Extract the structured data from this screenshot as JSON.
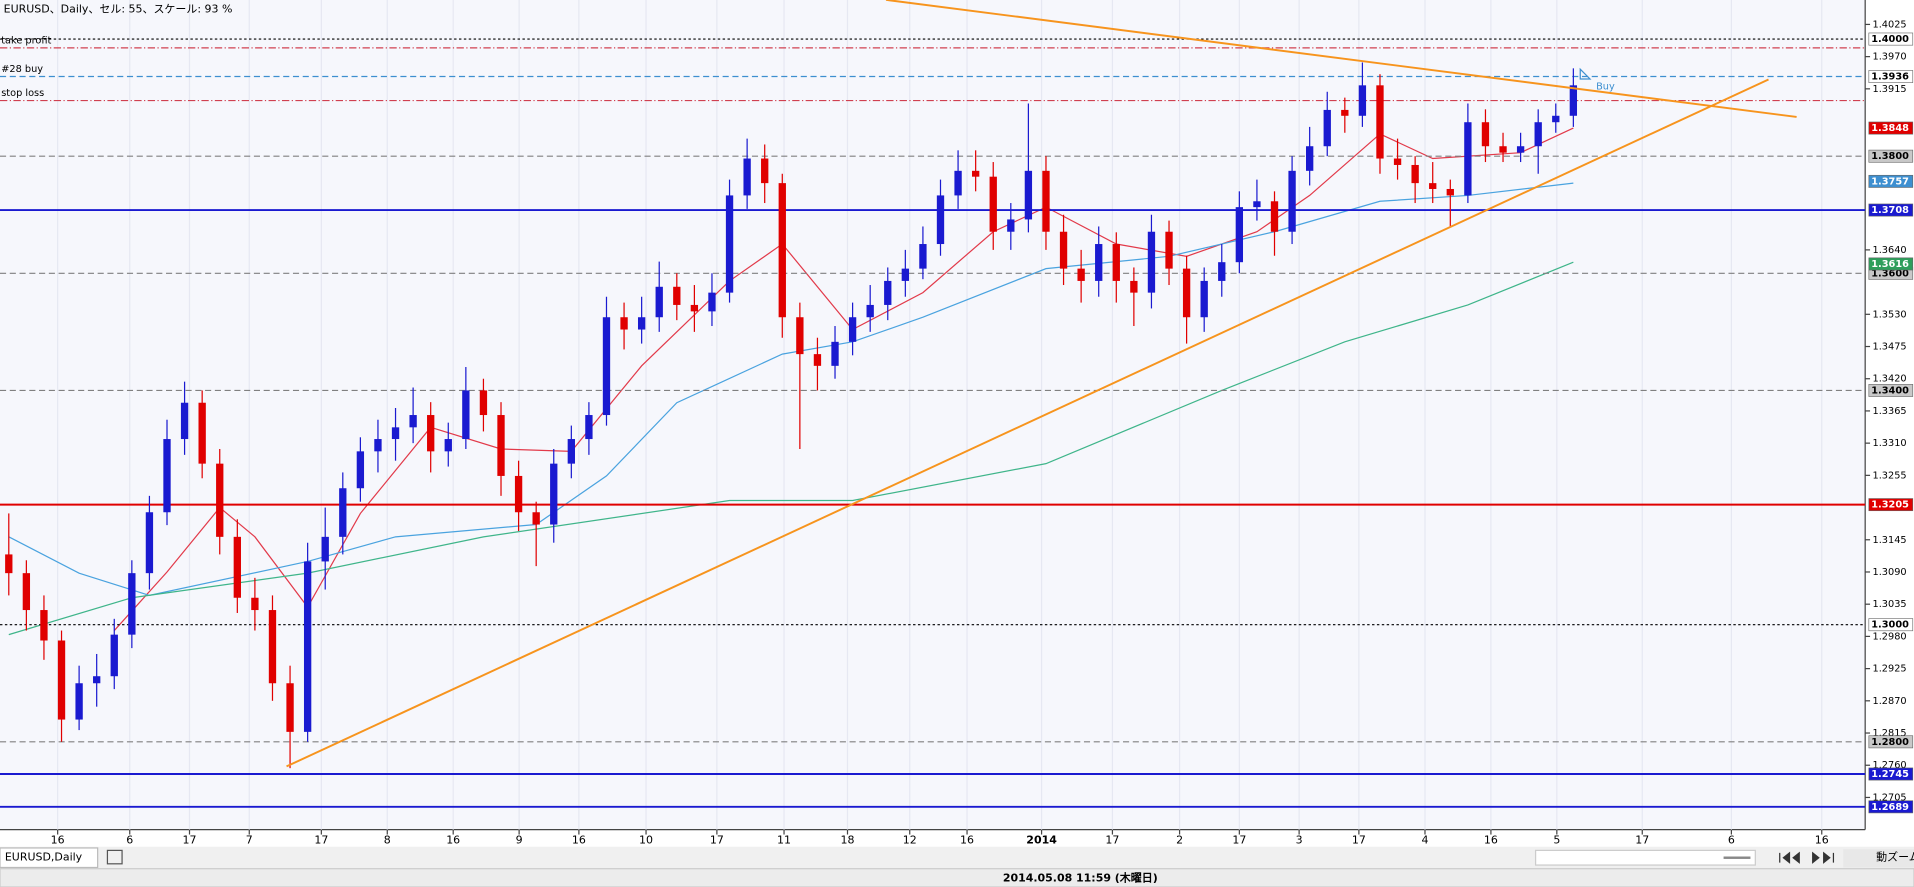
{
  "header": {
    "title": "EURUSD、Daily、セル: 55、スケール: 93 %"
  },
  "chart_data": {
    "type": "candlestick",
    "grid": true,
    "xlim": [
      -0.5,
      105.6
    ],
    "ylim": [
      1.265,
      1.40667
    ],
    "yticks": [
      {
        "value": 1.4025,
        "label": "1.4025"
      },
      {
        "value": 1.397,
        "label": "1.3970"
      },
      {
        "value": 1.3915,
        "label": "1.3915"
      },
      {
        "value": 1.364,
        "label": "1.3640"
      },
      {
        "value": 1.353,
        "label": "1.3530"
      },
      {
        "value": 1.3475,
        "label": "1.3475"
      },
      {
        "value": 1.342,
        "label": "1.3420"
      },
      {
        "value": 1.3365,
        "label": "1.3365"
      },
      {
        "value": 1.331,
        "label": "1.3310"
      },
      {
        "value": 1.3255,
        "label": "1.3255"
      },
      {
        "value": 1.3145,
        "label": "1.3145"
      },
      {
        "value": 1.309,
        "label": "1.3090"
      },
      {
        "value": 1.3035,
        "label": "1.3035"
      },
      {
        "value": 1.298,
        "label": "1.2980"
      },
      {
        "value": 1.2925,
        "label": "1.2925"
      },
      {
        "value": 1.287,
        "label": "1.2870"
      },
      {
        "value": 1.2815,
        "label": "1.2815"
      },
      {
        "value": 1.276,
        "label": "1.2760"
      },
      {
        "value": 1.2705,
        "label": "1.2705"
      }
    ],
    "xticks": [
      {
        "value": 2.78,
        "label": "16"
      },
      {
        "value": 6.88,
        "label": "6"
      },
      {
        "value": 10.28,
        "label": "17"
      },
      {
        "value": 13.68,
        "label": "7"
      },
      {
        "value": 17.78,
        "label": "17"
      },
      {
        "value": 21.53,
        "label": "8"
      },
      {
        "value": 25.28,
        "label": "16"
      },
      {
        "value": 29.03,
        "label": "9"
      },
      {
        "value": 32.43,
        "label": "16"
      },
      {
        "value": 36.25,
        "label": "10"
      },
      {
        "value": 40.28,
        "label": "17"
      },
      {
        "value": 44.1,
        "label": "11"
      },
      {
        "value": 47.71,
        "label": "18"
      },
      {
        "value": 51.25,
        "label": "12"
      },
      {
        "value": 54.51,
        "label": "16"
      },
      {
        "value": 58.75,
        "label": "2014"
      },
      {
        "value": 62.78,
        "label": "17"
      },
      {
        "value": 66.6,
        "label": "2"
      },
      {
        "value": 70,
        "label": "17"
      },
      {
        "value": 73.4,
        "label": "3"
      },
      {
        "value": 76.8,
        "label": "17"
      },
      {
        "value": 80.56,
        "label": "4"
      },
      {
        "value": 84.31,
        "label": "16"
      },
      {
        "value": 88.06,
        "label": "5"
      },
      {
        "value": 92.92,
        "label": "17"
      },
      {
        "value": 97.99,
        "label": "6"
      },
      {
        "value": 103.13,
        "label": "16"
      }
    ],
    "candles": {
      "up_color": "#1a1ad0",
      "down_color": "#e00000",
      "ohlc": [
        [
          1.312,
          1.319,
          1.305,
          1.3088
        ],
        [
          1.3088,
          1.311,
          1.299,
          1.3025
        ],
        [
          1.3025,
          1.305,
          1.294,
          1.2973
        ],
        [
          1.2973,
          1.299,
          1.28,
          1.2838
        ],
        [
          1.2838,
          1.293,
          1.282,
          1.29
        ],
        [
          1.29,
          1.295,
          1.286,
          1.2912
        ],
        [
          1.2912,
          1.301,
          1.289,
          1.2983
        ],
        [
          1.2983,
          1.311,
          1.296,
          1.3088
        ],
        [
          1.3088,
          1.322,
          1.306,
          1.3192
        ],
        [
          1.3192,
          1.335,
          1.317,
          1.3317
        ],
        [
          1.3317,
          1.3415,
          1.329,
          1.3379
        ],
        [
          1.3379,
          1.34,
          1.325,
          1.3275
        ],
        [
          1.3275,
          1.33,
          1.312,
          1.315
        ],
        [
          1.315,
          1.318,
          1.302,
          1.3046
        ],
        [
          1.3046,
          1.308,
          1.299,
          1.3025
        ],
        [
          1.3025,
          1.305,
          1.287,
          1.29
        ],
        [
          1.29,
          1.293,
          1.2755,
          1.2817
        ],
        [
          1.2817,
          1.314,
          1.28,
          1.3108
        ],
        [
          1.3108,
          1.32,
          1.306,
          1.315
        ],
        [
          1.315,
          1.326,
          1.312,
          1.3233
        ],
        [
          1.3233,
          1.332,
          1.321,
          1.3296
        ],
        [
          1.3296,
          1.335,
          1.326,
          1.3317
        ],
        [
          1.3317,
          1.337,
          1.328,
          1.3337
        ],
        [
          1.3337,
          1.3405,
          1.331,
          1.3358
        ],
        [
          1.3358,
          1.338,
          1.326,
          1.3296
        ],
        [
          1.3296,
          1.3345,
          1.327,
          1.3317
        ],
        [
          1.3317,
          1.344,
          1.33,
          1.34
        ],
        [
          1.34,
          1.342,
          1.333,
          1.3358
        ],
        [
          1.3358,
          1.338,
          1.322,
          1.3254
        ],
        [
          1.3254,
          1.328,
          1.316,
          1.3192
        ],
        [
          1.3192,
          1.321,
          1.31,
          1.3171
        ],
        [
          1.3171,
          1.33,
          1.314,
          1.3275
        ],
        [
          1.3275,
          1.334,
          1.325,
          1.3317
        ],
        [
          1.3317,
          1.338,
          1.329,
          1.3358
        ],
        [
          1.3358,
          1.356,
          1.334,
          1.3525
        ],
        [
          1.3525,
          1.355,
          1.347,
          1.3504
        ],
        [
          1.3504,
          1.356,
          1.348,
          1.3525
        ],
        [
          1.3525,
          1.362,
          1.35,
          1.3577
        ],
        [
          1.3577,
          1.36,
          1.352,
          1.3546
        ],
        [
          1.3546,
          1.358,
          1.35,
          1.3535
        ],
        [
          1.3535,
          1.36,
          1.351,
          1.3567
        ],
        [
          1.3567,
          1.376,
          1.355,
          1.3733
        ],
        [
          1.3733,
          1.383,
          1.371,
          1.3796
        ],
        [
          1.3796,
          1.382,
          1.372,
          1.3754
        ],
        [
          1.3754,
          1.377,
          1.349,
          1.3525
        ],
        [
          1.3525,
          1.355,
          1.33,
          1.3462
        ],
        [
          1.3462,
          1.349,
          1.34,
          1.3442
        ],
        [
          1.3442,
          1.351,
          1.342,
          1.3483
        ],
        [
          1.3483,
          1.355,
          1.346,
          1.3525
        ],
        [
          1.3525,
          1.358,
          1.35,
          1.3546
        ],
        [
          1.3546,
          1.361,
          1.352,
          1.3587
        ],
        [
          1.3587,
          1.364,
          1.356,
          1.3608
        ],
        [
          1.3608,
          1.368,
          1.359,
          1.365
        ],
        [
          1.365,
          1.376,
          1.363,
          1.3733
        ],
        [
          1.3733,
          1.381,
          1.371,
          1.3775
        ],
        [
          1.3775,
          1.381,
          1.374,
          1.3765
        ],
        [
          1.3765,
          1.379,
          1.364,
          1.3671
        ],
        [
          1.3671,
          1.372,
          1.364,
          1.3692
        ],
        [
          1.3692,
          1.389,
          1.367,
          1.3775
        ],
        [
          1.3775,
          1.38,
          1.364,
          1.3671
        ],
        [
          1.3671,
          1.37,
          1.358,
          1.3608
        ],
        [
          1.3608,
          1.364,
          1.355,
          1.3587
        ],
        [
          1.3587,
          1.368,
          1.356,
          1.365
        ],
        [
          1.365,
          1.367,
          1.355,
          1.3587
        ],
        [
          1.3587,
          1.361,
          1.351,
          1.3567
        ],
        [
          1.3567,
          1.37,
          1.354,
          1.3671
        ],
        [
          1.3671,
          1.369,
          1.358,
          1.3608
        ],
        [
          1.3608,
          1.363,
          1.348,
          1.3525
        ],
        [
          1.3525,
          1.361,
          1.35,
          1.3587
        ],
        [
          1.3587,
          1.365,
          1.356,
          1.3619
        ],
        [
          1.3619,
          1.374,
          1.36,
          1.3713
        ],
        [
          1.3713,
          1.376,
          1.369,
          1.3723
        ],
        [
          1.3723,
          1.374,
          1.363,
          1.3671
        ],
        [
          1.3671,
          1.38,
          1.365,
          1.3775
        ],
        [
          1.3775,
          1.385,
          1.375,
          1.3817
        ],
        [
          1.3817,
          1.391,
          1.38,
          1.3879
        ],
        [
          1.3879,
          1.39,
          1.384,
          1.3869
        ],
        [
          1.3869,
          1.396,
          1.385,
          1.3921
        ],
        [
          1.3921,
          1.394,
          1.377,
          1.3796
        ],
        [
          1.3796,
          1.383,
          1.376,
          1.3785
        ],
        [
          1.3785,
          1.38,
          1.372,
          1.3754
        ],
        [
          1.3754,
          1.379,
          1.372,
          1.3744
        ],
        [
          1.3744,
          1.376,
          1.368,
          1.3733
        ],
        [
          1.3733,
          1.389,
          1.372,
          1.3858
        ],
        [
          1.3858,
          1.388,
          1.379,
          1.3817
        ],
        [
          1.3817,
          1.384,
          1.379,
          1.3806
        ],
        [
          1.3806,
          1.384,
          1.379,
          1.3817
        ],
        [
          1.3817,
          1.388,
          1.377,
          1.3858
        ],
        [
          1.3858,
          1.389,
          1.384,
          1.3869
        ],
        [
          1.3869,
          1.395,
          1.385,
          1.3921
        ]
      ]
    },
    "lines": [
      {
        "color": "#e23a4a",
        "x": [
          6,
          9,
          12,
          14,
          17,
          20,
          24,
          28,
          32,
          36,
          41,
          44,
          48,
          52,
          56,
          59,
          63,
          67,
          71,
          74,
          78,
          81,
          86,
          89
        ],
        "values": [
          1.299,
          1.309,
          1.32,
          1.315,
          1.303,
          1.319,
          1.3337,
          1.33,
          1.3296,
          1.3442,
          1.3587,
          1.365,
          1.3504,
          1.3567,
          1.3671,
          1.3713,
          1.365,
          1.3629,
          1.3671,
          1.3733,
          1.3838,
          1.3796,
          1.3806,
          1.3848
        ]
      },
      {
        "color": "#4aa3df",
        "x": [
          0,
          4,
          8,
          17,
          22,
          30,
          34,
          38,
          44,
          48,
          52,
          59,
          66,
          72,
          78,
          83,
          89
        ],
        "values": [
          1.315,
          1.3088,
          1.305,
          1.3108,
          1.315,
          1.3171,
          1.3254,
          1.3379,
          1.3462,
          1.3483,
          1.3525,
          1.3608,
          1.3629,
          1.3671,
          1.3723,
          1.3733,
          1.3754
        ]
      },
      {
        "color": "#3fb58a",
        "x": [
          0,
          7,
          17,
          27,
          41,
          48,
          59,
          69,
          76,
          83,
          89
        ],
        "values": [
          1.2983,
          1.3046,
          1.3088,
          1.315,
          1.3212,
          1.3212,
          1.3275,
          1.34,
          1.3483,
          1.3546,
          1.3619
        ]
      }
    ],
    "trendlines": [
      {
        "color": "#f7941d",
        "x": [
          15.8,
          100.1
        ],
        "values": [
          1.2758,
          1.3931
        ]
      },
      {
        "color": "#f7941d",
        "x": [
          49.9,
          101.7
        ],
        "values": [
          1.4067,
          1.3867
        ]
      }
    ],
    "levels": [
      {
        "value": 1.4,
        "label": "1.4000",
        "color": "#000000",
        "style": "dotted",
        "box": "#ffffff"
      },
      {
        "value": 1.3985,
        "text": "take profit",
        "color": "#d04050",
        "style": "dashdot"
      },
      {
        "value": 1.3936,
        "text": "#28 buy",
        "label": "1.3936",
        "color": "#3d8fd0",
        "style": "dashed",
        "box": "#ffffff"
      },
      {
        "value": 1.3895,
        "text": "stop loss",
        "color": "#d04050",
        "style": "dashdot"
      },
      {
        "value": 1.38,
        "label": "1.3800",
        "color": "#808080",
        "style": "dashed",
        "box": "#c8c8c8"
      },
      {
        "value": 1.3708,
        "label": "1.3708",
        "color": "#1a1ad0",
        "style": "solid",
        "box": "#1a1ad0"
      },
      {
        "value": 1.36,
        "label": "1.3600",
        "color": "#808080",
        "style": "dashed",
        "box": "#c8c8c8"
      },
      {
        "value": 1.34,
        "label": "1.3400",
        "color": "#808080",
        "style": "dashed",
        "box": "#c8c8c8"
      },
      {
        "value": 1.3205,
        "label": "1.3205",
        "color": "#e00000",
        "style": "solid",
        "box": "#e00000"
      },
      {
        "value": 1.3,
        "label": "1.3000",
        "color": "#000000",
        "style": "dotted",
        "box": "#ffffff"
      },
      {
        "value": 1.28,
        "label": "1.2800",
        "color": "#808080",
        "style": "dashed",
        "box": "#c8c8c8"
      },
      {
        "value": 1.2745,
        "label": "1.2745",
        "color": "#1a1ad0",
        "style": "solid",
        "box": "#1a1ad0"
      },
      {
        "value": 1.2689,
        "label": "1.2689",
        "color": "#1a1ad0",
        "style": "solid",
        "box": "#1a1ad0"
      }
    ],
    "price_tags": [
      {
        "value": 1.3848,
        "label": "1.3848",
        "color": "#e00000"
      },
      {
        "value": 1.3757,
        "label": "1.3757",
        "color": "#3d8fd0"
      },
      {
        "value": 1.3616,
        "label": "1.3616",
        "color": "#2e9e5b"
      }
    ],
    "order": {
      "x": 89.6,
      "value": 1.3936,
      "label": "Buy"
    }
  },
  "tab": "EURUSD,Daily",
  "status": "2014.05.08 11:59 (木曜日)",
  "zoom": "動ズーム"
}
